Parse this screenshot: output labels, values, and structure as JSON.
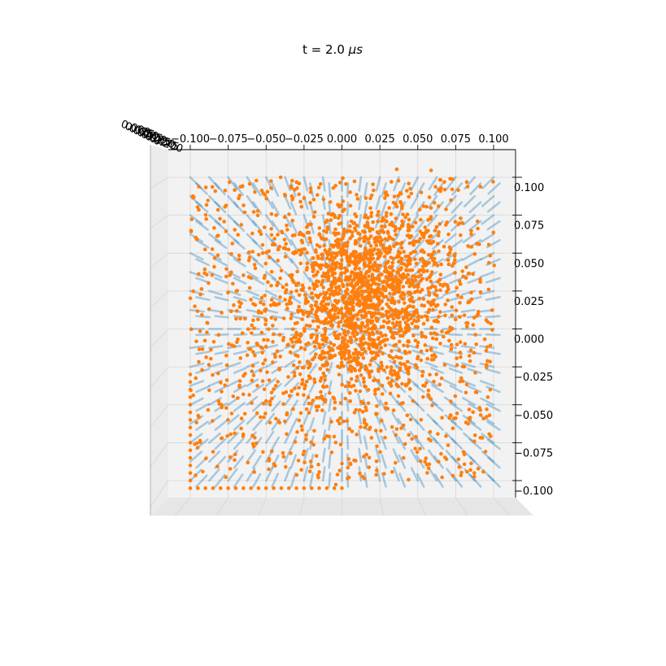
{
  "figure": {
    "title_prefix": "t = 2.0 ",
    "title_unit": "μs"
  },
  "chart_data": {
    "type": "scatter",
    "projection": "3d",
    "view": "top-down",
    "title": "t = 2.0 μs",
    "xlabel": "",
    "ylabel": "",
    "zlabel": "",
    "xlim": [
      -0.115,
      0.115
    ],
    "ylim": [
      -0.11,
      0.115
    ],
    "x_ticks": [
      "−0.100",
      "−0.075",
      "−0.050",
      "−0.025",
      "0.000",
      "0.025",
      "0.050",
      "0.075",
      "0.100"
    ],
    "y_ticks": [
      "0.100",
      "0.075",
      "0.050",
      "0.025",
      "0.000",
      "−0.025",
      "−0.050",
      "−0.075",
      "−0.100"
    ],
    "z_ticks_note": "overlapping z-axis tick labels at top-left corner",
    "z_ticks": [
      "0.000",
      "0.025",
      "0.050",
      "0.075",
      "0.100",
      "0.125",
      "0.150",
      "0.175",
      "0.200"
    ],
    "grid": true,
    "series": [
      {
        "kind": "quiver",
        "color": "#1f77b4",
        "grid_range": [
          -0.1,
          0.1
        ],
        "grid_step": 0.0125,
        "description_of_field": "radially converging vectors toward origin"
      },
      {
        "kind": "scatter",
        "color": "#ff7f0e",
        "count": 2400,
        "distribution": "dense cluster near (0.01, 0.02), sparse elsewhere within ±0.1",
        "edge_row_y": -0.105,
        "edge_row_x_range": [
          -0.1,
          0.0
        ]
      }
    ],
    "colors": {
      "quiver": "#1f77b4",
      "particles": "#ff7f0e",
      "pane": "#f2f2f2",
      "grid": "#d6d6d6"
    }
  }
}
